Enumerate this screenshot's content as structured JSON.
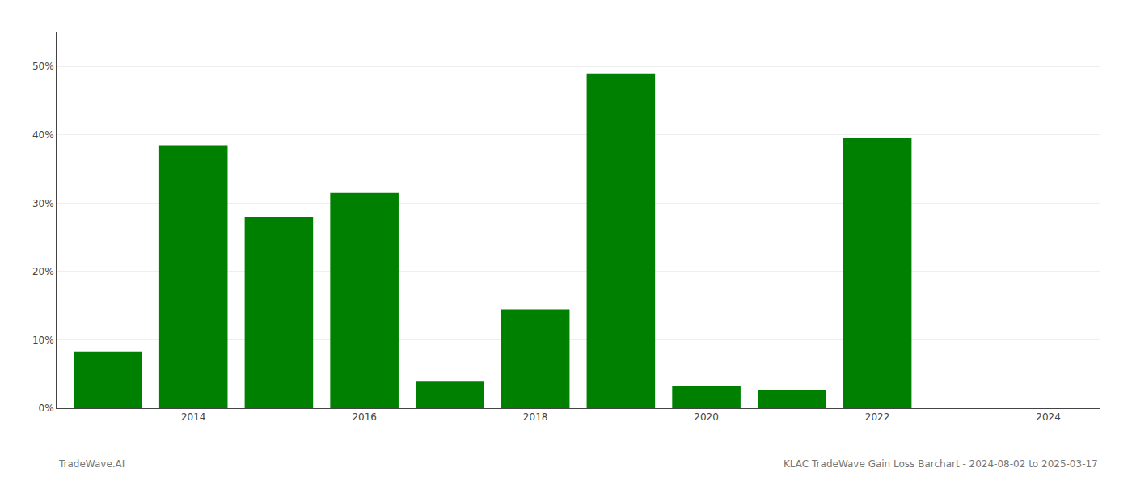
{
  "chart_data": {
    "type": "bar",
    "x": [
      2013,
      2014,
      2015,
      2016,
      2017,
      2018,
      2019,
      2020,
      2021,
      2022,
      2023
    ],
    "values": [
      8.3,
      38.5,
      28.0,
      31.5,
      4.0,
      14.5,
      49.0,
      3.2,
      2.7,
      39.5,
      0.0
    ],
    "color": "#008000",
    "xlim": [
      2012.4,
      2024.6
    ],
    "xticks": [
      2014,
      2016,
      2018,
      2020,
      2022,
      2024
    ],
    "ylim": [
      0,
      55
    ],
    "yticks": [
      {
        "value": 0,
        "label": "0%"
      },
      {
        "value": 10,
        "label": "10%"
      },
      {
        "value": 20,
        "label": "20%"
      },
      {
        "value": 30,
        "label": "30%"
      },
      {
        "value": 40,
        "label": "40%"
      },
      {
        "value": 50,
        "label": "50%"
      }
    ],
    "grid": true,
    "annotations": [
      "TradeWave.AI",
      "KLAC TradeWave Gain Loss Barchart - 2024-08-02 to 2025-03-17"
    ]
  }
}
